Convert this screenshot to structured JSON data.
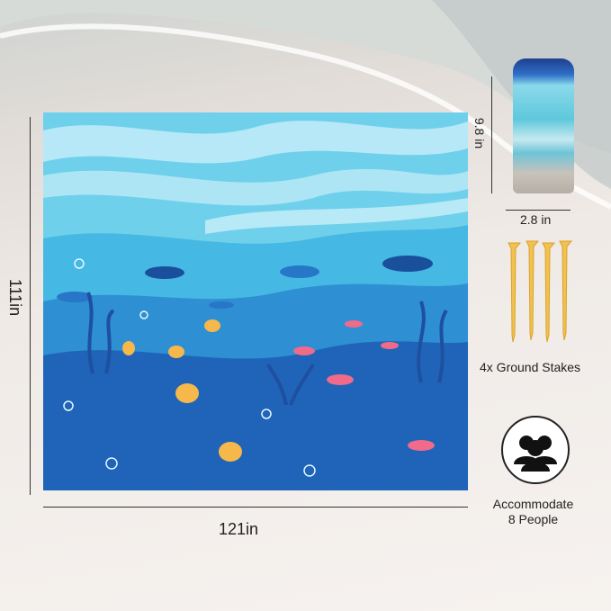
{
  "dimensions": {
    "height": "111in",
    "width": "121in",
    "bag_height": "9.8 in",
    "bag_width": "2.8 in"
  },
  "features": {
    "stakes_label": "4x Ground Stakes",
    "capacity_line1": "Accommodate",
    "capacity_line2": "8 People"
  },
  "colors": {
    "sky": "#6fd0ec",
    "shallow": "#45b8e3",
    "mid": "#2f8fd3",
    "deep": "#1f64b8",
    "stake": "#f2c14e"
  }
}
